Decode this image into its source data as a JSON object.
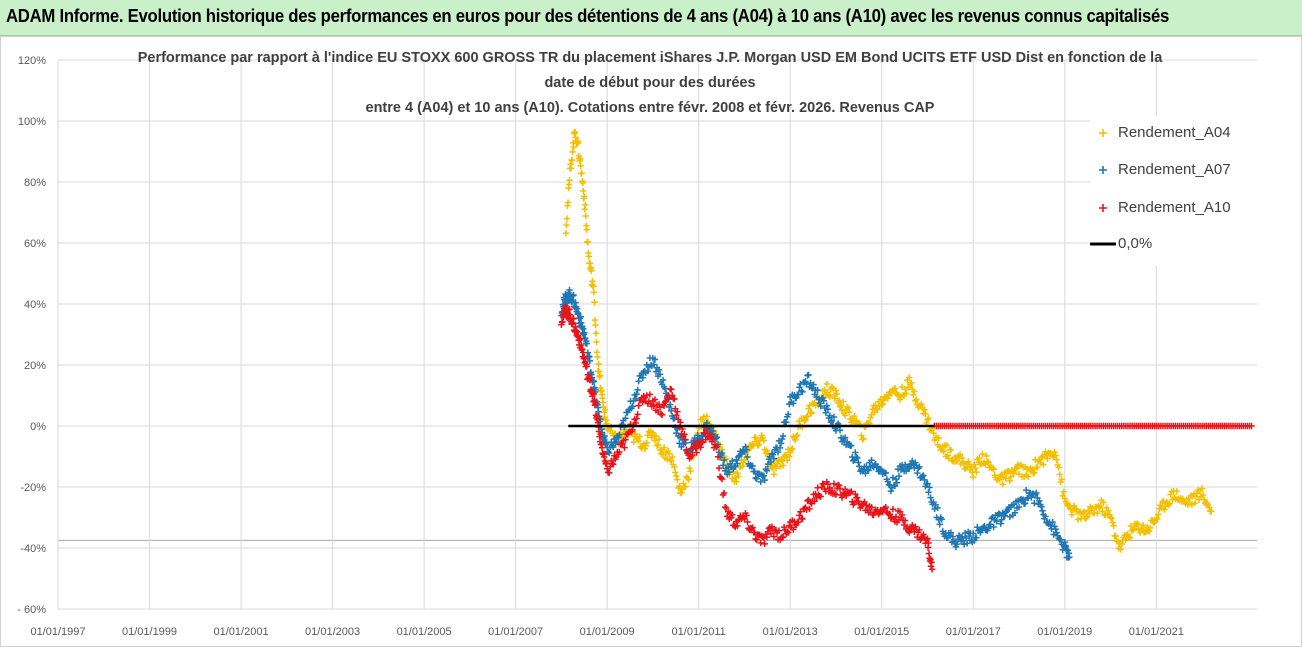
{
  "banner": {
    "text": "ADAM Informe. Evolution historique des performances en euros pour des détentions de 4 ans (A04) à 10 ans (A10) avec les revenus connus capitalisés"
  },
  "colors": {
    "a04": "#f2c000",
    "a07": "#1f77b4",
    "a10": "#e8141b",
    "zero": "#000000",
    "grid": "#d9d9d9",
    "axis_text": "#595959"
  },
  "chart_data": {
    "type": "scatter",
    "title_lines": [
      "Performance par rapport à l'indice EU STOXX 600 GROSS TR  du placement iShares J.P. Morgan USD EM Bond UCITS ETF USD Dist en fonction de la",
      "date de début pour des durées",
      "entre 4 (A04) et 10 ans (A10). Cotations entre févr. 2008 et févr. 2026. Revenus CAP"
    ],
    "xlim": [
      1997.0,
      2023.2
    ],
    "ylim": [
      -60,
      120
    ],
    "y_ticks": [
      -60,
      -40,
      -20,
      0,
      20,
      40,
      60,
      80,
      100,
      120
    ],
    "y_tick_labels": [
      "- 60%",
      "-40%",
      "-20%",
      "0%",
      "20%",
      "40%",
      "60%",
      "80%",
      "100%",
      "120%"
    ],
    "x_ticks": [
      1997,
      1999,
      2001,
      2003,
      2005,
      2007,
      2009,
      2011,
      2013,
      2015,
      2017,
      2019,
      2021
    ],
    "x_tick_labels": [
      "01/01/1997",
      "01/01/1999",
      "01/01/2001",
      "01/01/2003",
      "01/01/2005",
      "01/01/2007",
      "01/01/2009",
      "01/01/2011",
      "01/01/2013",
      "01/01/2015",
      "01/01/2017",
      "01/01/2019",
      "01/01/2021"
    ],
    "series": [
      {
        "name": "Rendement_A04",
        "x": [
          2008.1,
          2008.2,
          2008.3,
          2008.4,
          2008.5,
          2008.6,
          2008.7,
          2008.8,
          2008.9,
          2009.0,
          2009.2,
          2009.4,
          2009.6,
          2009.8,
          2010.0,
          2010.2,
          2010.4,
          2010.6,
          2010.8,
          2011.0,
          2011.2,
          2011.4,
          2011.6,
          2011.8,
          2012.0,
          2012.2,
          2012.4,
          2012.6,
          2012.8,
          2013.0,
          2013.2,
          2013.4,
          2013.6,
          2013.8,
          2014.0,
          2014.2,
          2014.4,
          2014.6,
          2014.8,
          2015.0,
          2015.2,
          2015.4,
          2015.6,
          2015.8,
          2016.0,
          2016.2,
          2016.4,
          2016.6,
          2016.8,
          2017.0,
          2017.2,
          2017.4,
          2017.6,
          2017.8,
          2018.0,
          2018.2,
          2018.4,
          2018.6,
          2018.8,
          2019.0,
          2019.2,
          2019.4,
          2019.6,
          2019.8,
          2020.0,
          2020.2,
          2020.4,
          2020.6,
          2020.8,
          2021.0,
          2021.2,
          2021.4,
          2021.6,
          2021.8,
          2022.0,
          2022.2
        ],
        "values": [
          65,
          85,
          97,
          88,
          75,
          55,
          45,
          20,
          8,
          0,
          -5,
          -2,
          -4,
          -6,
          -2,
          -8,
          -10,
          -22,
          -15,
          0,
          2,
          -5,
          -12,
          -18,
          -10,
          -6,
          -4,
          -15,
          -12,
          -8,
          0,
          5,
          8,
          12,
          10,
          5,
          2,
          -3,
          5,
          8,
          12,
          10,
          14,
          8,
          2,
          -5,
          -8,
          -10,
          -12,
          -15,
          -10,
          -14,
          -18,
          -16,
          -14,
          -16,
          -12,
          -10,
          -8,
          -25,
          -28,
          -30,
          -28,
          -26,
          -30,
          -40,
          -35,
          -33,
          -34,
          -30,
          -25,
          -22,
          -25,
          -24,
          -22,
          -28
        ]
      },
      {
        "name": "Rendement_A07",
        "x": [
          2008.0,
          2008.1,
          2008.2,
          2008.3,
          2008.4,
          2008.5,
          2008.6,
          2008.7,
          2008.8,
          2008.9,
          2009.0,
          2009.2,
          2009.4,
          2009.6,
          2009.8,
          2010.0,
          2010.2,
          2010.4,
          2010.6,
          2010.8,
          2011.0,
          2011.2,
          2011.4,
          2011.6,
          2011.8,
          2012.0,
          2012.2,
          2012.4,
          2012.6,
          2012.8,
          2013.0,
          2013.2,
          2013.4,
          2013.6,
          2013.8,
          2014.0,
          2014.2,
          2014.4,
          2014.6,
          2014.8,
          2015.0,
          2015.2,
          2015.4,
          2015.6,
          2015.8,
          2016.0,
          2016.2,
          2016.4,
          2016.6,
          2016.8,
          2017.0,
          2017.2,
          2017.4,
          2017.6,
          2017.8,
          2018.0,
          2018.2,
          2018.4,
          2018.6,
          2018.8,
          2019.0,
          2019.1
        ],
        "values": [
          38,
          42,
          43,
          40,
          35,
          30,
          22,
          14,
          5,
          -3,
          -8,
          -5,
          2,
          10,
          18,
          22,
          15,
          5,
          -5,
          -8,
          -4,
          0,
          -5,
          -15,
          -12,
          -8,
          -15,
          -18,
          -10,
          -5,
          8,
          12,
          15,
          10,
          5,
          0,
          -5,
          -10,
          -15,
          -12,
          -14,
          -20,
          -15,
          -12,
          -14,
          -20,
          -28,
          -35,
          -38,
          -37,
          -36,
          -34,
          -32,
          -30,
          -28,
          -26,
          -22,
          -24,
          -30,
          -35,
          -40,
          -43
        ]
      },
      {
        "name": "Rendement_A10",
        "x": [
          2008.0,
          2008.1,
          2008.2,
          2008.3,
          2008.4,
          2008.5,
          2008.6,
          2008.7,
          2008.8,
          2008.9,
          2009.0,
          2009.2,
          2009.4,
          2009.6,
          2009.8,
          2010.0,
          2010.2,
          2010.4,
          2010.6,
          2010.8,
          2011.0,
          2011.2,
          2011.4,
          2011.6,
          2011.8,
          2012.0,
          2012.2,
          2012.4,
          2012.6,
          2012.8,
          2013.0,
          2013.2,
          2013.4,
          2013.6,
          2013.8,
          2014.0,
          2014.2,
          2014.4,
          2014.6,
          2014.8,
          2015.0,
          2015.2,
          2015.4,
          2015.6,
          2015.8,
          2016.0,
          2016.1
        ],
        "values": [
          35,
          38,
          36,
          32,
          28,
          22,
          15,
          10,
          0,
          -8,
          -15,
          -10,
          -5,
          2,
          10,
          8,
          5,
          12,
          0,
          -10,
          -6,
          -2,
          -8,
          -28,
          -32,
          -30,
          -35,
          -38,
          -34,
          -36,
          -33,
          -30,
          -26,
          -22,
          -20,
          -21,
          -22,
          -24,
          -26,
          -28,
          -27,
          -29,
          -30,
          -33,
          -35,
          -38,
          -47
        ]
      },
      {
        "name": "0,0%",
        "type": "line",
        "x": [
          2008.15,
          2016.15
        ],
        "values": [
          0,
          0
        ]
      },
      {
        "name": "zero_markers_A10",
        "type": "scatter",
        "x_range": [
          2016.15,
          2023.1
        ],
        "value": 0
      }
    ],
    "legend": [
      "Rendement_A04",
      "Rendement_A07",
      "Rendement_A10",
      "0,0%"
    ],
    "legend_position": "top-right"
  }
}
